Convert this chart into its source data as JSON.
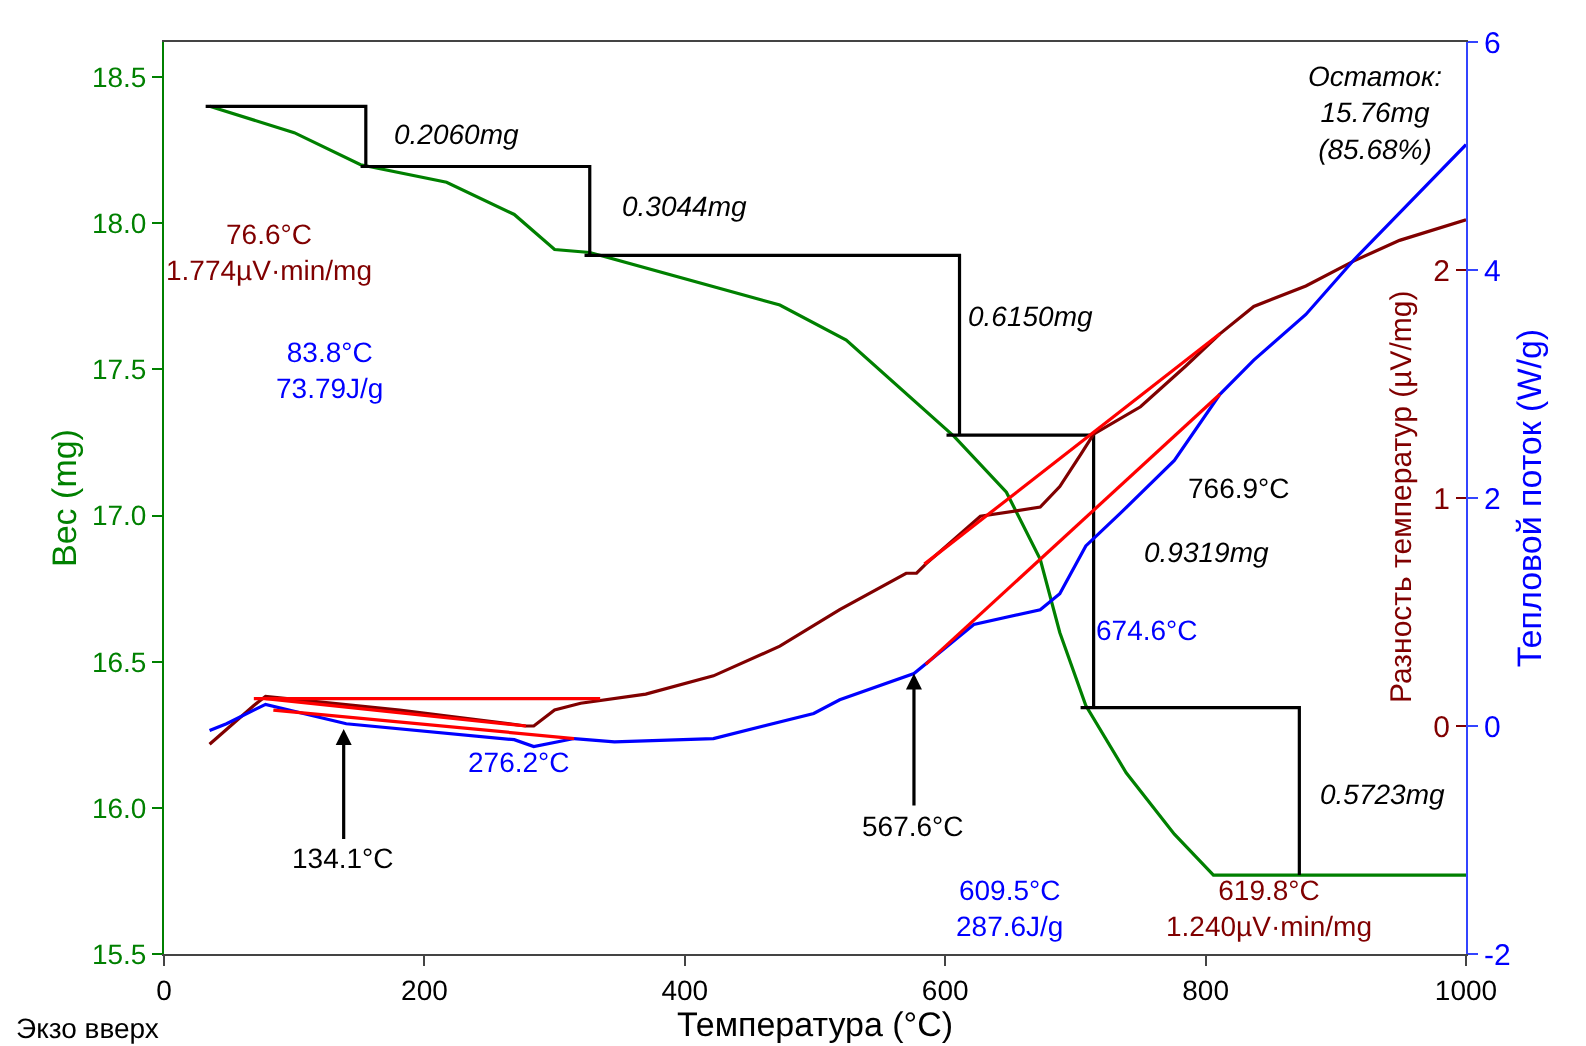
{
  "chart_data": {
    "type": "line",
    "xlabel": "Температура (°C)",
    "ylabel": "Вес (mg)",
    "y2label": "Разность температур (µV/mg)",
    "y3label": "Тепловой поток (W/g)",
    "xlim": [
      0,
      1000
    ],
    "xticks": [
      0,
      200,
      400,
      600,
      800,
      1000
    ],
    "ylim": [
      15.5,
      18.62
    ],
    "yticks": [
      15.5,
      {
        "value": 16,
        "label": "16.0"
      },
      16.5,
      {
        "value": 17,
        "label": "17.0"
      },
      17.5,
      {
        "value": 18,
        "label": "18.0"
      },
      18.5
    ],
    "y2lim": [
      -1,
      3
    ],
    "y2ticks": [
      0,
      1,
      2
    ],
    "y3lim": [
      -2,
      6
    ],
    "y3ticks": [
      -2,
      0,
      2,
      4,
      6
    ],
    "grid": false,
    "marker": "none",
    "line_style": "solid",
    "series": [
      {
        "color": "#008000",
        "x": [
          35,
          100,
          151,
          217,
          269,
          300,
          327,
          473,
          524,
          607,
          647,
          673,
          688,
          708,
          739,
          776,
          806,
          868,
          1000
        ],
        "values": [
          18.4,
          18.31,
          18.2,
          18.14,
          18.03,
          17.91,
          17.9,
          17.72,
          17.6,
          17.27,
          17.08,
          16.85,
          16.6,
          16.35,
          16.12,
          15.91,
          15.77,
          15.77,
          15.77
        ]
      },
      {
        "color": "#800000",
        "axis": "y2",
        "x": [
          35,
          69,
          78,
          181,
          278,
          284,
          300,
          320,
          370,
          422,
          473,
          519,
          570,
          578,
          585,
          627,
          673,
          688,
          704,
          714,
          750,
          785,
          811,
          837,
          877,
          914,
          949,
          1000
        ],
        "values": [
          -0.08,
          0.09,
          0.13,
          0.07,
          0.0,
          0.0,
          0.07,
          0.1,
          0.14,
          0.22,
          0.35,
          0.51,
          0.67,
          0.67,
          0.71,
          0.92,
          0.96,
          1.05,
          1.19,
          1.28,
          1.4,
          1.58,
          1.72,
          1.84,
          1.93,
          2.04,
          2.13,
          2.22
        ]
      },
      {
        "color": "#0000ff",
        "axis": "y3",
        "x": [
          35,
          48,
          78,
          140,
          269,
          284,
          315,
          346,
          422,
          499,
          519,
          576,
          622,
          673,
          688,
          708,
          734,
          776,
          811,
          837,
          877,
          914,
          1000
        ],
        "values": [
          -0.04,
          0.02,
          0.19,
          0.02,
          -0.12,
          -0.18,
          -0.11,
          -0.14,
          -0.11,
          0.11,
          0.23,
          0.46,
          0.89,
          1.02,
          1.16,
          1.58,
          1.86,
          2.33,
          2.91,
          3.21,
          3.61,
          4.09,
          5.1
        ]
      },
      {
        "color": "#ff0000",
        "axis": "y2",
        "x": [
          69,
          335
        ],
        "values": [
          0.12,
          0.12
        ]
      },
      {
        "color": "#ff0000",
        "axis": "y2",
        "x": [
          78,
          278
        ],
        "values": [
          0.12,
          0.0
        ]
      },
      {
        "color": "#ff0000",
        "axis": "y2",
        "x": [
          584,
          811
        ],
        "values": [
          0.71,
          1.72
        ]
      },
      {
        "color": "#ff0000",
        "axis": "y3",
        "x": [
          84,
          315
        ],
        "values": [
          0.14,
          -0.11
        ]
      },
      {
        "color": "#ff0000",
        "axis": "y3",
        "x": [
          585,
          811
        ],
        "values": [
          0.54,
          2.91
        ]
      },
      {
        "color": "#000000",
        "x": [
          32,
          155,
          155
        ],
        "values": [
          18.4,
          18.4,
          18.194
        ]
      },
      {
        "color": "#000000",
        "x": [
          151,
          327,
          327
        ],
        "values": [
          18.194,
          18.194,
          17.89
        ]
      },
      {
        "color": "#000000",
        "x": [
          323,
          611,
          611
        ],
        "values": [
          17.89,
          17.89,
          17.275
        ]
      },
      {
        "color": "#000000",
        "x": [
          601,
          714,
          714
        ],
        "values": [
          17.275,
          17.275,
          16.343
        ]
      },
      {
        "color": "#000000",
        "x": [
          704,
          872,
          872
        ],
        "values": [
          16.343,
          16.343,
          15.77
        ]
      }
    ],
    "annotations": [
      "0.2060mg",
      "0.3044mg",
      "0.6150mg",
      "0.9319mg",
      "0.5723mg",
      "Остаток:\n15.76mg\n(85.68%)",
      "76.6°C\n1.774µV·min/mg",
      "83.8°C\n73.79J/g",
      {
        "text": "134.1°C",
        "x": 138,
        "y": 16.27
      },
      "276.2°C",
      {
        "text": "567.6°C",
        "x": 576,
        "y": 16.46
      },
      "674.6°C",
      "766.9°C",
      "609.5°C\n287.6J/g",
      "619.8°C\n1.240µV·min/mg",
      "Экзо вверх"
    ]
  }
}
